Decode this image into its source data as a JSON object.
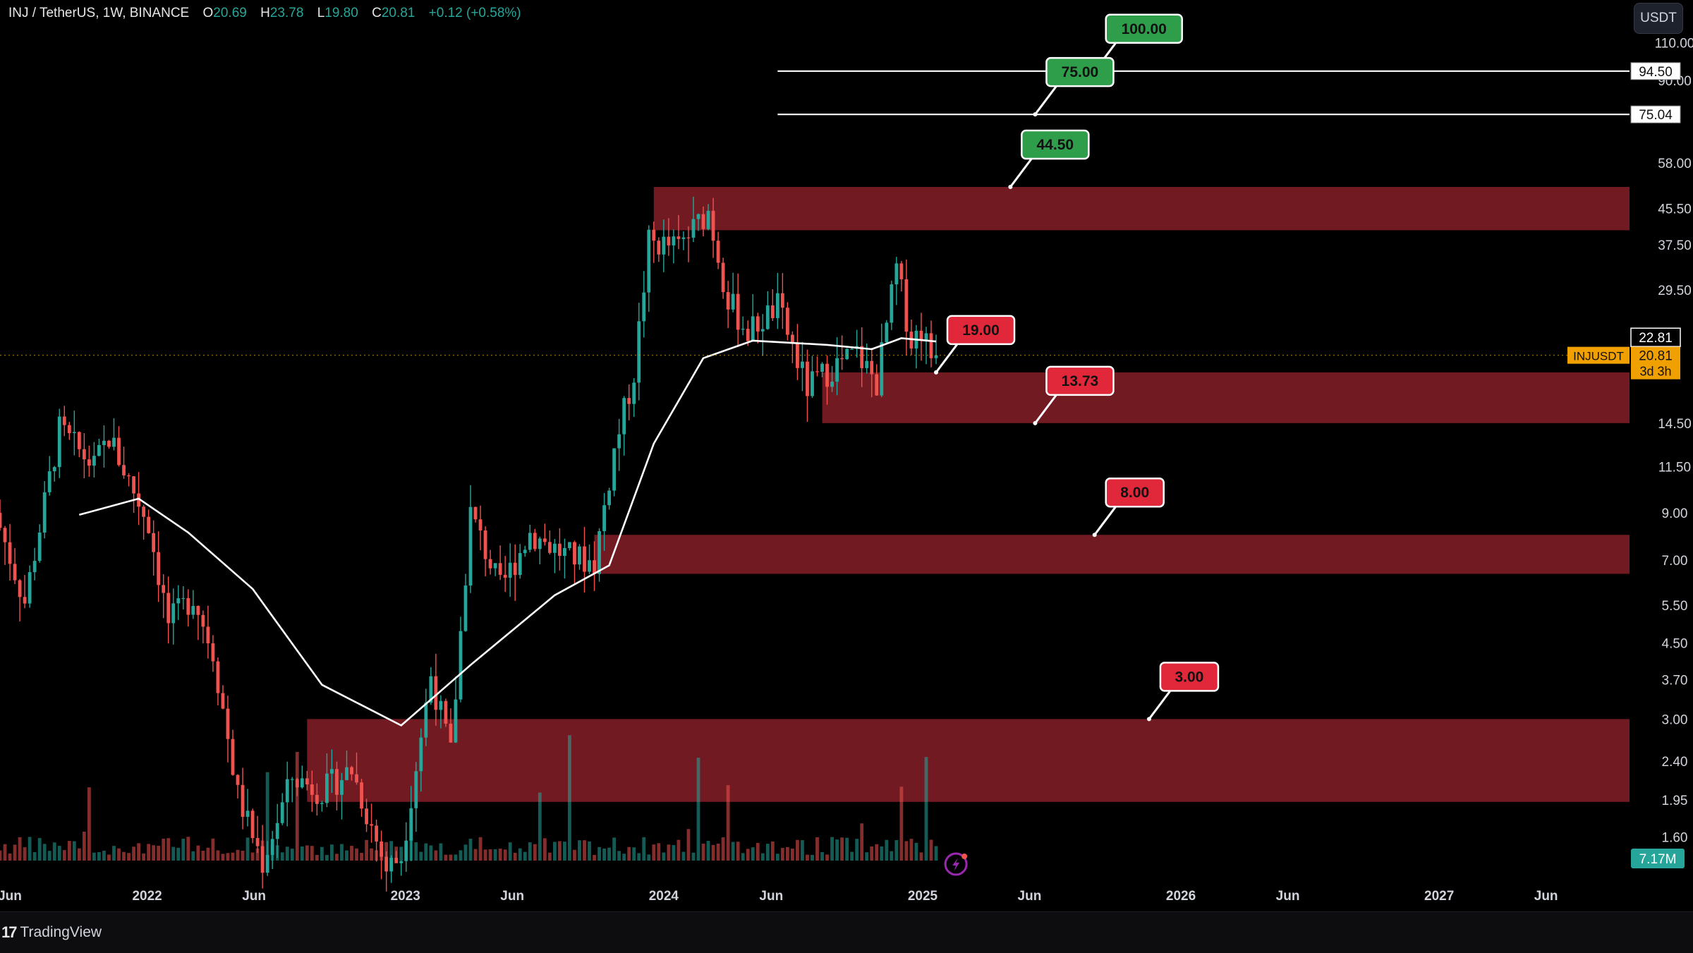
{
  "header": {
    "symbol": "INJ / TetherUS, 1W, BINANCE",
    "open_label": "O",
    "open": "20.69",
    "high_label": "H",
    "high": "23.78",
    "low_label": "L",
    "low": "19.80",
    "close_label": "C",
    "close": "20.81",
    "change": "+0.12 (+0.58%)"
  },
  "currency_button": "USDT",
  "footer": {
    "brand": "TradingView",
    "logo": "17"
  },
  "colors": {
    "background": "#000000",
    "up": "#26a69a",
    "down": "#ef5350",
    "zone": "#7b1c24",
    "green_label": "#2e9e4a",
    "red_label": "#e0283a",
    "ma": "#ffffff",
    "current_price": "#f0a000"
  },
  "chart_data": {
    "type": "candlestick",
    "scale": "log",
    "timeframe": "1W",
    "x_range": [
      "2021-06-07",
      "2027-09-27"
    ],
    "y_range": [
      1.3,
      128
    ],
    "y_ticks": [
      "110.00",
      "90.00",
      "58.00",
      "45.50",
      "37.50",
      "29.50",
      "14.50",
      "11.50",
      "9.00",
      "7.00",
      "5.50",
      "4.50",
      "3.70",
      "3.00",
      "2.40",
      "1.95",
      "1.60"
    ],
    "x_ticks": [
      {
        "label": "Jun",
        "date": "2021-06-01"
      },
      {
        "label": "2022",
        "date": "2022-01-01"
      },
      {
        "label": "Jun",
        "date": "2022-06-01"
      },
      {
        "label": "2023",
        "date": "2023-01-01"
      },
      {
        "label": "Jun",
        "date": "2023-06-01"
      },
      {
        "label": "2024",
        "date": "2024-01-01"
      },
      {
        "label": "Jun",
        "date": "2024-06-01"
      },
      {
        "label": "2025",
        "date": "2025-01-01"
      },
      {
        "label": "Jun",
        "date": "2025-06-01"
      },
      {
        "label": "2026",
        "date": "2026-01-01"
      },
      {
        "label": "Jun",
        "date": "2026-06-01"
      },
      {
        "label": "2027",
        "date": "2027-01-01"
      },
      {
        "label": "Jun",
        "date": "2027-06-01"
      }
    ],
    "price_path": [
      [
        "2021-06-07",
        9.0
      ],
      [
        "2021-07-19",
        5.6
      ],
      [
        "2021-09-06",
        14.0
      ],
      [
        "2021-10-25",
        11.5
      ],
      [
        "2021-11-15",
        13.5
      ],
      [
        "2022-01-10",
        8.5
      ],
      [
        "2022-02-07",
        5.0
      ],
      [
        "2022-03-14",
        5.8
      ],
      [
        "2022-04-11",
        4.3
      ],
      [
        "2022-05-16",
        2.0
      ],
      [
        "2022-06-20",
        1.4
      ],
      [
        "2022-08-01",
        2.2
      ],
      [
        "2022-09-12",
        2.05
      ],
      [
        "2022-10-24",
        2.3
      ],
      [
        "2022-12-12",
        1.35
      ],
      [
        "2023-01-02",
        1.45
      ],
      [
        "2023-02-13",
        3.8
      ],
      [
        "2023-03-13",
        2.5
      ],
      [
        "2023-04-10",
        9.0
      ],
      [
        "2023-05-22",
        6.0
      ],
      [
        "2023-07-03",
        8.1
      ],
      [
        "2023-08-21",
        7.2
      ],
      [
        "2023-10-02",
        6.9
      ],
      [
        "2023-10-30",
        12.5
      ],
      [
        "2023-11-27",
        19.0
      ],
      [
        "2023-12-18",
        38.0
      ],
      [
        "2024-01-29",
        37.0
      ],
      [
        "2024-03-11",
        45.0
      ],
      [
        "2024-04-08",
        28.0
      ],
      [
        "2024-05-06",
        23.5
      ],
      [
        "2024-06-17",
        27.0
      ],
      [
        "2024-07-29",
        17.5
      ],
      [
        "2024-09-02",
        19.5
      ],
      [
        "2024-10-07",
        21.0
      ],
      [
        "2024-11-04",
        18.0
      ],
      [
        "2024-12-02",
        33.0
      ],
      [
        "2024-12-23",
        22.5
      ],
      [
        "2025-01-06",
        24.0
      ],
      [
        "2025-01-20",
        20.81
      ]
    ],
    "moving_average": {
      "name": "",
      "points": [
        [
          "2021-09-27",
          8.9
        ],
        [
          "2021-12-20",
          9.7
        ],
        [
          "2022-02-28",
          8.1
        ],
        [
          "2022-05-30",
          6.0
        ],
        [
          "2022-09-05",
          3.6
        ],
        [
          "2022-12-26",
          2.9
        ],
        [
          "2023-04-03",
          4.0
        ],
        [
          "2023-07-31",
          5.8
        ],
        [
          "2023-10-16",
          6.8
        ],
        [
          "2023-12-18",
          13.0
        ],
        [
          "2024-02-26",
          20.5
        ],
        [
          "2024-05-06",
          22.5
        ],
        [
          "2024-08-19",
          22.0
        ],
        [
          "2024-10-21",
          21.5
        ],
        [
          "2024-12-02",
          22.8
        ],
        [
          "2025-01-20",
          22.4
        ]
      ]
    },
    "zones": [
      {
        "from": "2023-12-18",
        "low": 40.5,
        "high": 51
      },
      {
        "from": "2024-08-12",
        "low": 14.5,
        "high": 19.0
      },
      {
        "from": "2023-09-25",
        "low": 6.5,
        "high": 8.0
      },
      {
        "from": "2022-08-15",
        "low": 1.93,
        "high": 3.0
      }
    ],
    "horizontal_lines": [
      {
        "price": 94.5,
        "from": "2024-06-10",
        "axis_label": "94.50"
      },
      {
        "price": 75.04,
        "from": "2024-06-10",
        "axis_label": "75.04"
      }
    ],
    "callouts": [
      {
        "text": "100.00",
        "color": "green",
        "date": "2025-09-01",
        "price": 94.5
      },
      {
        "text": "75.00",
        "color": "green",
        "date": "2025-06-09",
        "price": 75.04
      },
      {
        "text": "44.50",
        "color": "green",
        "date": "2025-05-05",
        "price": 51
      },
      {
        "text": "19.00",
        "color": "red",
        "date": "2025-01-20",
        "price": 19.0
      },
      {
        "text": "13.73",
        "color": "red",
        "date": "2025-06-09",
        "price": 14.5
      },
      {
        "text": "8.00",
        "color": "red",
        "date": "2025-09-01",
        "price": 8.0
      },
      {
        "text": "3.00",
        "color": "red",
        "date": "2025-11-17",
        "price": 3.0
      }
    ],
    "axis_badges": [
      {
        "text": "22.81",
        "price": 22.81,
        "style": "white"
      },
      {
        "text": "20.81",
        "price": 20.81,
        "style": "current"
      }
    ],
    "current_price": {
      "symbol": "INJUSDT",
      "price": 20.81,
      "value": "20.81",
      "countdown": "3d 3h"
    },
    "volume": {
      "label": "7.17M",
      "max_ratio": 1.0
    }
  }
}
